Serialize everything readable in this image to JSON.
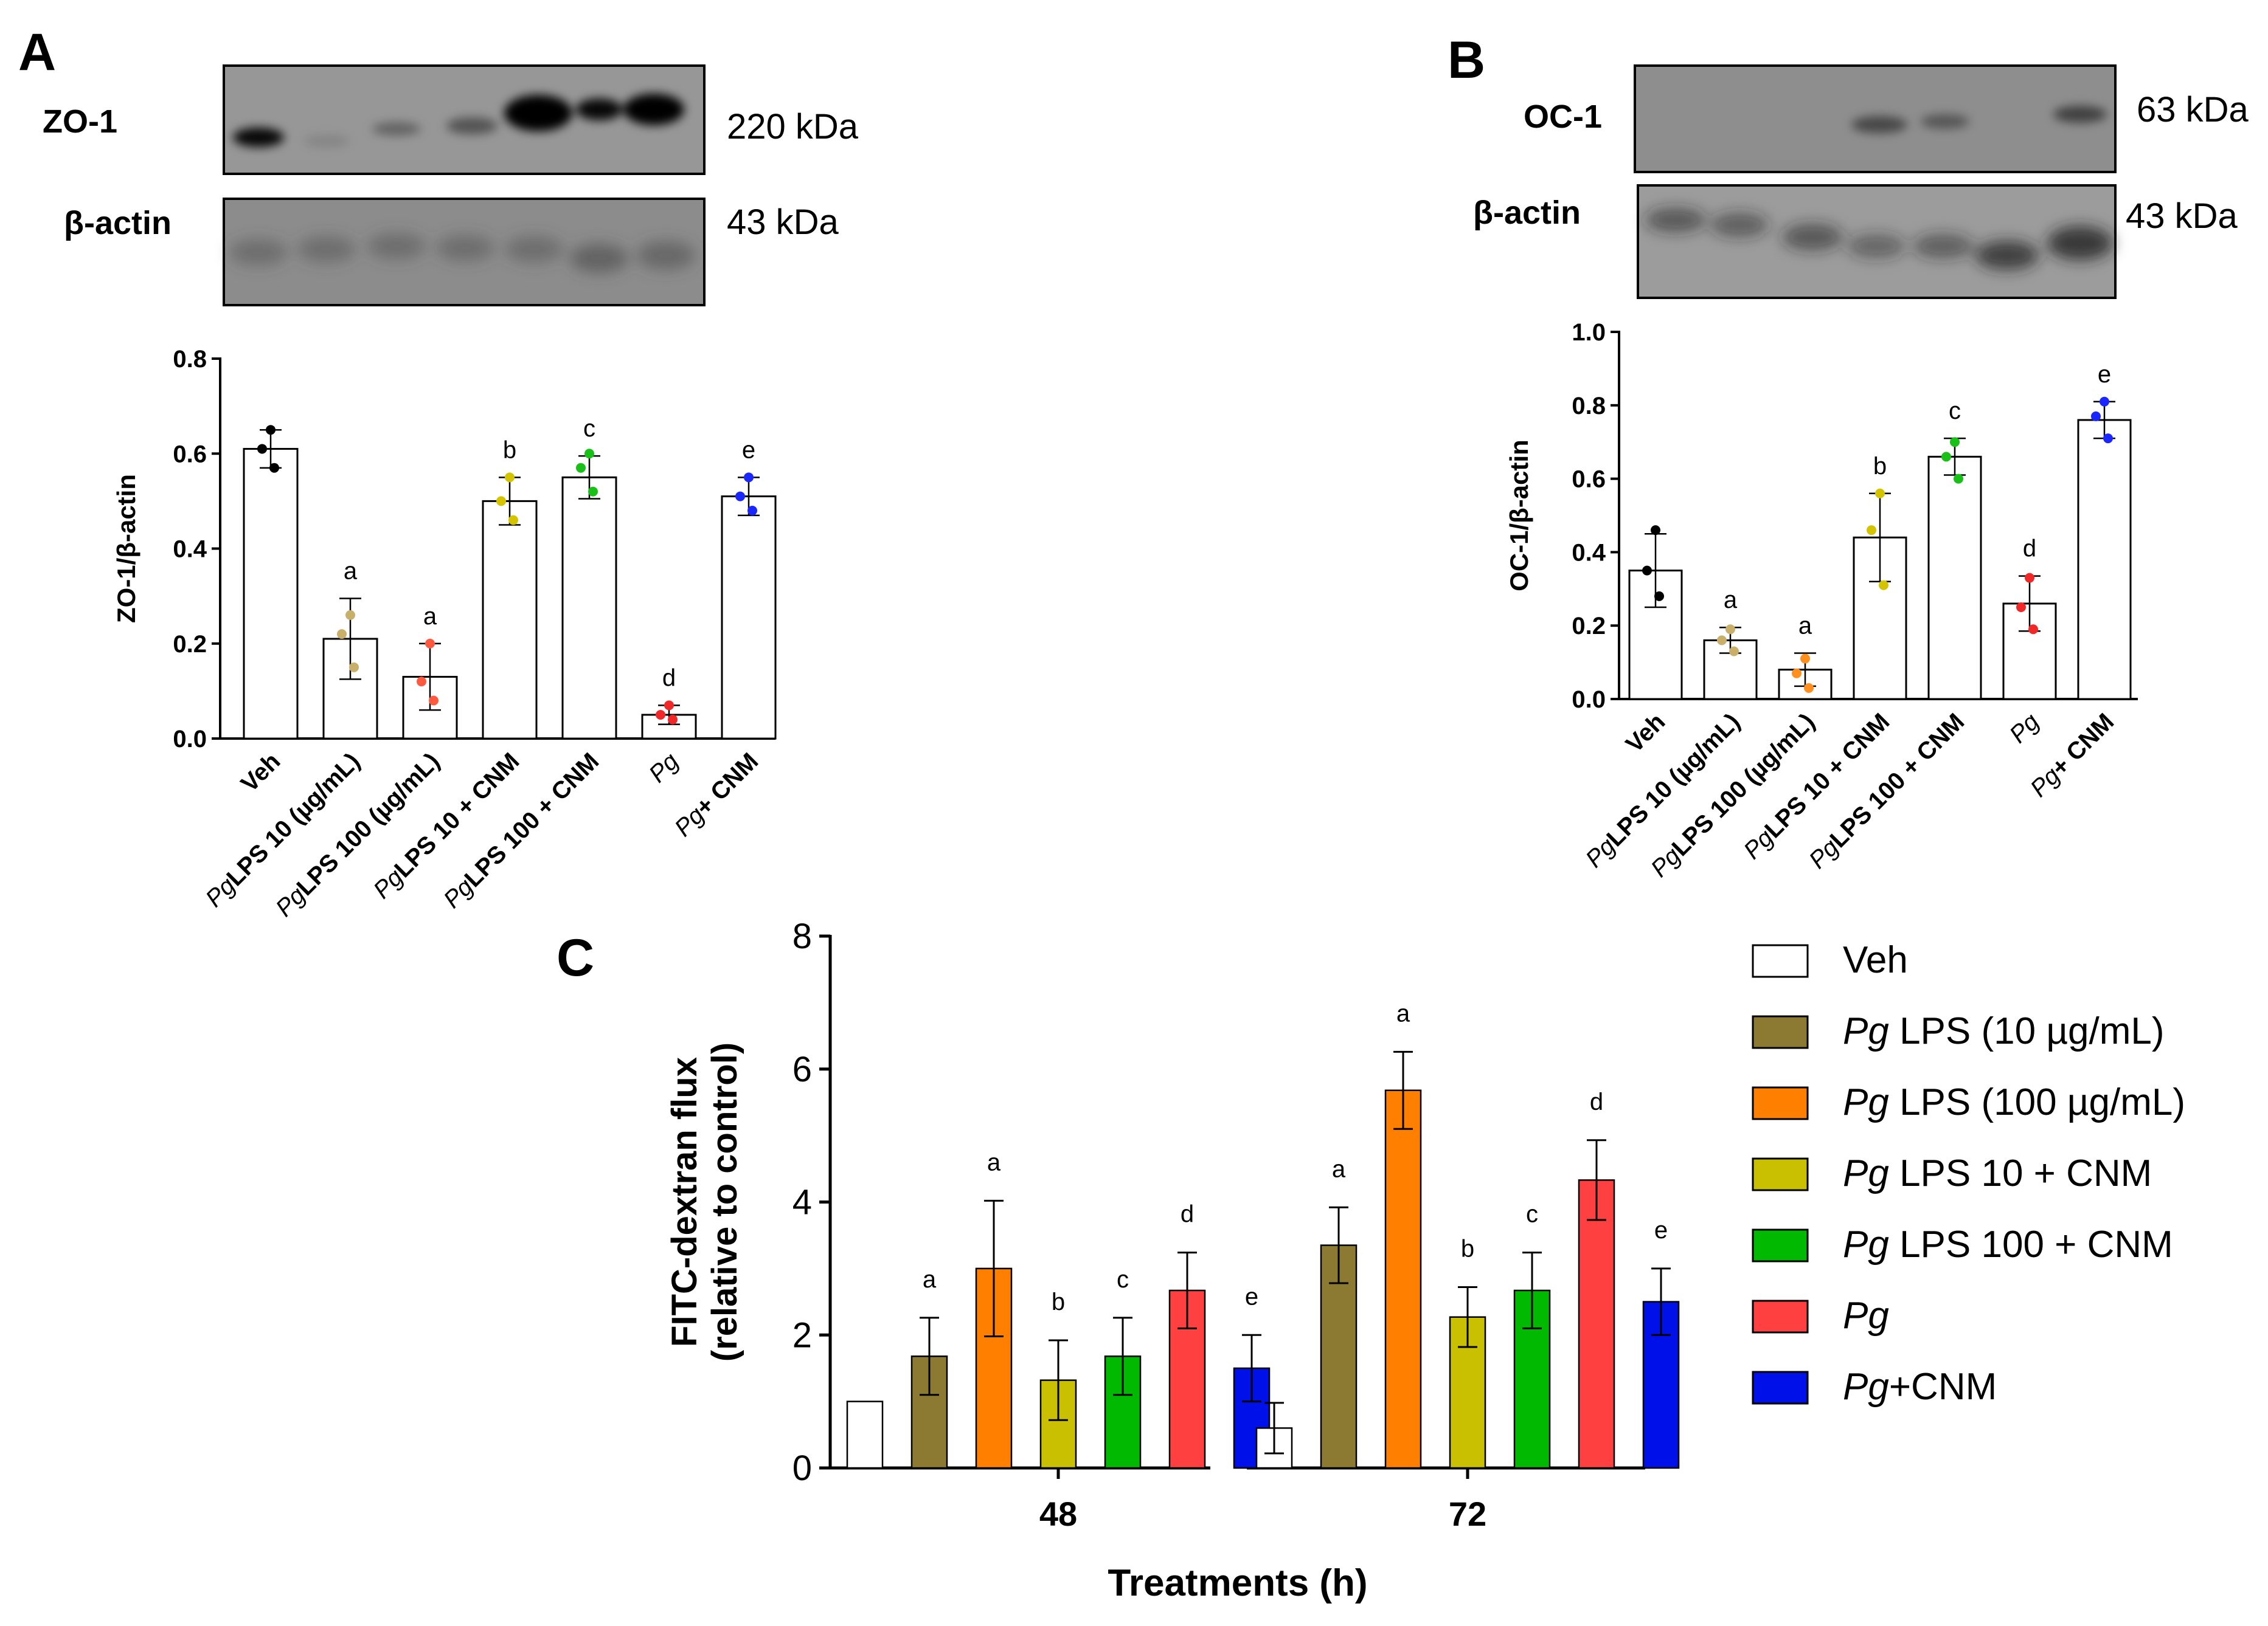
{
  "panel_a": {
    "letter": "A",
    "blot_top": {
      "label": "ZO-1",
      "kda": "220 kDa"
    },
    "blot_bottom": {
      "label": "β-actin",
      "kda": "43 kDa"
    }
  },
  "panel_b": {
    "letter": "B",
    "blot_top": {
      "label": "OC-1",
      "kda": "63 kDa"
    },
    "blot_bottom": {
      "label": "β-actin",
      "kda": "43 kDa"
    }
  },
  "panel_c": {
    "letter": "C"
  },
  "colors": {
    "veh": "#ffffff",
    "pglps10": "#8c7a32",
    "pglps100": "#ff8000",
    "pglps10cnm": "#c8c000",
    "pglps100cnm": "#00b900",
    "pg": "#ff4040",
    "pgcnm": "#0010e8"
  },
  "legend": [
    {
      "italic": "",
      "text": "Veh"
    },
    {
      "italic": "Pg",
      "text": " LPS (10 µg/mL)"
    },
    {
      "italic": "Pg",
      "text": " LPS (100 µg/mL)"
    },
    {
      "italic": "Pg",
      "text": " LPS 10 + CNM"
    },
    {
      "italic": "Pg",
      "text": " LPS 100 + CNM"
    },
    {
      "italic": "Pg",
      "text": ""
    },
    {
      "italic": "Pg",
      "text": "+CNM"
    }
  ],
  "chart_data": [
    {
      "id": "zo1",
      "type": "bar",
      "title": "",
      "xlabel": "",
      "ylabel": "ZO-1/β-actin",
      "ylim": [
        0,
        0.8
      ],
      "yticks": [
        "0.0",
        "0.2",
        "0.4",
        "0.6",
        "0.8"
      ],
      "categories": [
        {
          "italic": "",
          "text": "Veh"
        },
        {
          "italic": "Pg",
          "text": "LPS 10 (µg/mL)"
        },
        {
          "italic": "Pg",
          "text": "LPS 100 (µg/mL)"
        },
        {
          "italic": "Pg",
          "text": "LPS 10 + CNM"
        },
        {
          "italic": "Pg",
          "text": "LPS 100 + CNM"
        },
        {
          "italic": "Pg",
          "text": ""
        },
        {
          "italic": "Pg",
          "text": "+ CNM"
        }
      ],
      "values": [
        0.61,
        0.21,
        0.13,
        0.5,
        0.55,
        0.05,
        0.51
      ],
      "errors": [
        0.04,
        0.085,
        0.07,
        0.05,
        0.045,
        0.02,
        0.04
      ],
      "points": [
        [
          0.65,
          0.61,
          0.57
        ],
        [
          0.26,
          0.22,
          0.15
        ],
        [
          0.2,
          0.12,
          0.08
        ],
        [
          0.55,
          0.5,
          0.46
        ],
        [
          0.6,
          0.57,
          0.52
        ],
        [
          0.07,
          0.05,
          0.04
        ],
        [
          0.55,
          0.51,
          0.48
        ]
      ],
      "point_colors": [
        "#000000",
        "#c8b06a",
        "#ff5a40",
        "#d4c400",
        "#18c018",
        "#f02828",
        "#1a28ff"
      ],
      "sig_letters": [
        "",
        "a",
        "a",
        "b",
        "c",
        "d",
        "e"
      ]
    },
    {
      "id": "oc1",
      "type": "bar",
      "title": "",
      "xlabel": "",
      "ylabel": "OC-1/β-actin",
      "ylim": [
        0,
        1.0
      ],
      "yticks": [
        "0.0",
        "0.2",
        "0.4",
        "0.6",
        "0.8",
        "1.0"
      ],
      "categories": [
        {
          "italic": "",
          "text": "Veh"
        },
        {
          "italic": "Pg",
          "text": "LPS 10 (µg/mL)"
        },
        {
          "italic": "Pg",
          "text": "LPS 100 (µg/mL)"
        },
        {
          "italic": "Pg",
          "text": "LPS 10 + CNM"
        },
        {
          "italic": "Pg",
          "text": "LPS 100 + CNM"
        },
        {
          "italic": "Pg",
          "text": ""
        },
        {
          "italic": "Pg",
          "text": "+ CNM"
        }
      ],
      "values": [
        0.35,
        0.16,
        0.08,
        0.44,
        0.66,
        0.26,
        0.76
      ],
      "errors": [
        0.1,
        0.035,
        0.045,
        0.12,
        0.05,
        0.075,
        0.05
      ],
      "points": [
        [
          0.46,
          0.35,
          0.28
        ],
        [
          0.19,
          0.16,
          0.13
        ],
        [
          0.11,
          0.07,
          0.03
        ],
        [
          0.56,
          0.46,
          0.31
        ],
        [
          0.7,
          0.66,
          0.6
        ],
        [
          0.33,
          0.25,
          0.19
        ],
        [
          0.81,
          0.77,
          0.71
        ]
      ],
      "point_colors": [
        "#000000",
        "#c8b06a",
        "#ff9020",
        "#d4c400",
        "#18c018",
        "#f02828",
        "#1a28ff"
      ],
      "sig_letters": [
        "",
        "a",
        "a",
        "b",
        "c",
        "d",
        "e"
      ]
    },
    {
      "id": "fitc",
      "type": "bar",
      "title": "",
      "xlabel": "Treatments (h)",
      "ylabel": "FITC-dextran flux (relative to control)",
      "ylabel_lines": [
        "FITC-dextran flux",
        "(relative to control)"
      ],
      "ylim": [
        0,
        8
      ],
      "yticks": [
        "0",
        "2",
        "4",
        "6",
        "8"
      ],
      "categories": [
        "48",
        "72"
      ],
      "series": [
        {
          "name": "Veh",
          "values": [
            1.0,
            0.6
          ],
          "errors": [
            0,
            0.38
          ],
          "letters": [
            "",
            ""
          ]
        },
        {
          "name": "Pg LPS (10 µg/mL)",
          "values": [
            1.68,
            3.35
          ],
          "errors": [
            0.58,
            0.57
          ],
          "letters": [
            "a",
            "a"
          ]
        },
        {
          "name": "Pg LPS (100 µg/mL)",
          "values": [
            3.0,
            5.68
          ],
          "errors": [
            1.02,
            0.58
          ],
          "letters": [
            "a",
            "a"
          ]
        },
        {
          "name": "Pg LPS 10 + CNM",
          "values": [
            1.32,
            2.27
          ],
          "errors": [
            0.6,
            0.45
          ],
          "letters": [
            "b",
            "b"
          ]
        },
        {
          "name": "Pg LPS 100 + CNM",
          "values": [
            1.68,
            2.67
          ],
          "errors": [
            0.58,
            0.57
          ],
          "letters": [
            "c",
            "c"
          ]
        },
        {
          "name": "Pg",
          "values": [
            2.67,
            4.33
          ],
          "errors": [
            0.57,
            0.6
          ],
          "letters": [
            "d",
            "d"
          ]
        },
        {
          "name": "Pg+CNM",
          "values": [
            1.5,
            2.5
          ],
          "errors": [
            0.5,
            0.5
          ],
          "letters": [
            "e",
            "e"
          ]
        }
      ]
    }
  ]
}
